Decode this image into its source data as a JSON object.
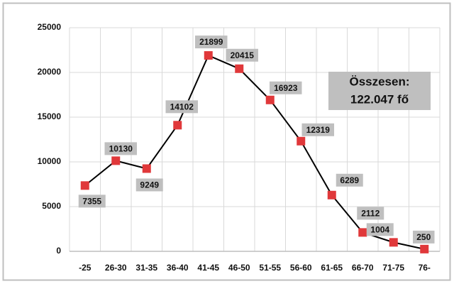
{
  "chart_data": {
    "type": "line",
    "categories": [
      "-25",
      "26-30",
      "31-35",
      "36-40",
      "41-45",
      "46-50",
      "51-55",
      "56-60",
      "61-65",
      "66-70",
      "71-75",
      "76-"
    ],
    "values": [
      7355,
      10130,
      9249,
      14102,
      21899,
      20415,
      16923,
      12319,
      6289,
      2112,
      1004,
      250
    ],
    "color": "#000000",
    "marker_color": "#e0383a",
    "ylim": [
      0,
      25000
    ],
    "yticks": [
      0,
      5000,
      10000,
      15000,
      20000,
      25000
    ],
    "grid": true,
    "annotation": [
      "Összesen:",
      "122.047 fő"
    ]
  }
}
